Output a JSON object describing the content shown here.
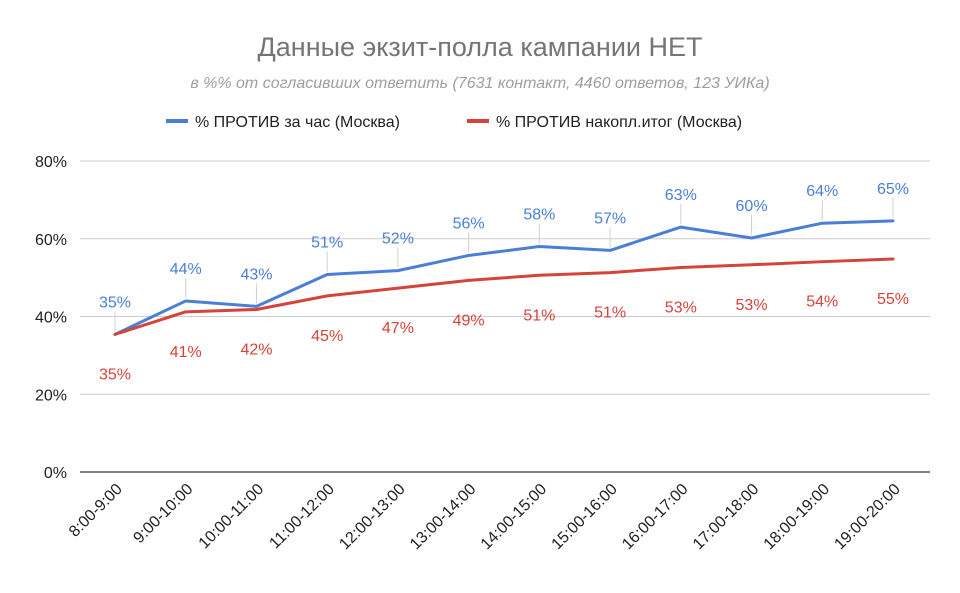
{
  "chart_data": {
    "type": "line",
    "title": "Данные экзит-полла кампании НЕТ",
    "subtitle": "в %% от согласивших ответить (7631 контакт, 4460 ответов, 123 УИКа)",
    "xlabel": "",
    "ylabel": "",
    "categories": [
      "8:00-9:00",
      "9:00-10:00",
      "10:00-11:00",
      "11:00-12:00",
      "12:00-13:00",
      "13:00-14:00",
      "14:00-15:00",
      "15:00-16:00",
      "16:00-17:00",
      "17:00-18:00",
      "18:00-19:00",
      "19:00-20:00"
    ],
    "y_ticks": [
      "0%",
      "20%",
      "40%",
      "60%",
      "80%"
    ],
    "ylim": [
      0,
      80
    ],
    "grid": true,
    "legend_position": "top",
    "series": [
      {
        "name": "% ПРОТИВ за час (Москва)",
        "color": "#4a7fd6",
        "values": [
          35.4,
          44.0,
          42.6,
          50.8,
          51.8,
          55.7,
          58.0,
          57.0,
          63.0,
          60.2,
          64.0,
          64.6
        ],
        "labels": [
          "35%",
          "44%",
          "43%",
          "51%",
          "52%",
          "56%",
          "58%",
          "57%",
          "63%",
          "60%",
          "64%",
          "65%"
        ]
      },
      {
        "name": "% ПРОТИВ накопл.итог (Москва)",
        "color": "#d5433a",
        "values": [
          35.4,
          41.2,
          41.8,
          45.3,
          47.3,
          49.3,
          50.6,
          51.3,
          52.6,
          53.3,
          54.1,
          54.8
        ],
        "labels": [
          "35%",
          "41%",
          "42%",
          "45%",
          "47%",
          "49%",
          "51%",
          "51%",
          "53%",
          "53%",
          "54%",
          "55%"
        ]
      }
    ]
  }
}
